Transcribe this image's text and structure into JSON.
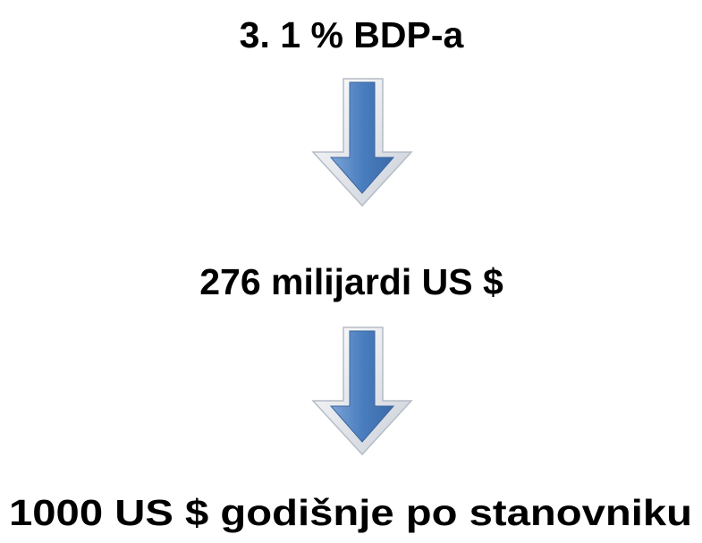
{
  "nodes": [
    {
      "label": "3. 1 % BDP-a"
    },
    {
      "label": "276 milijardi US $"
    },
    {
      "label": "1000 US $ godišnje po stanovniku"
    }
  ]
}
